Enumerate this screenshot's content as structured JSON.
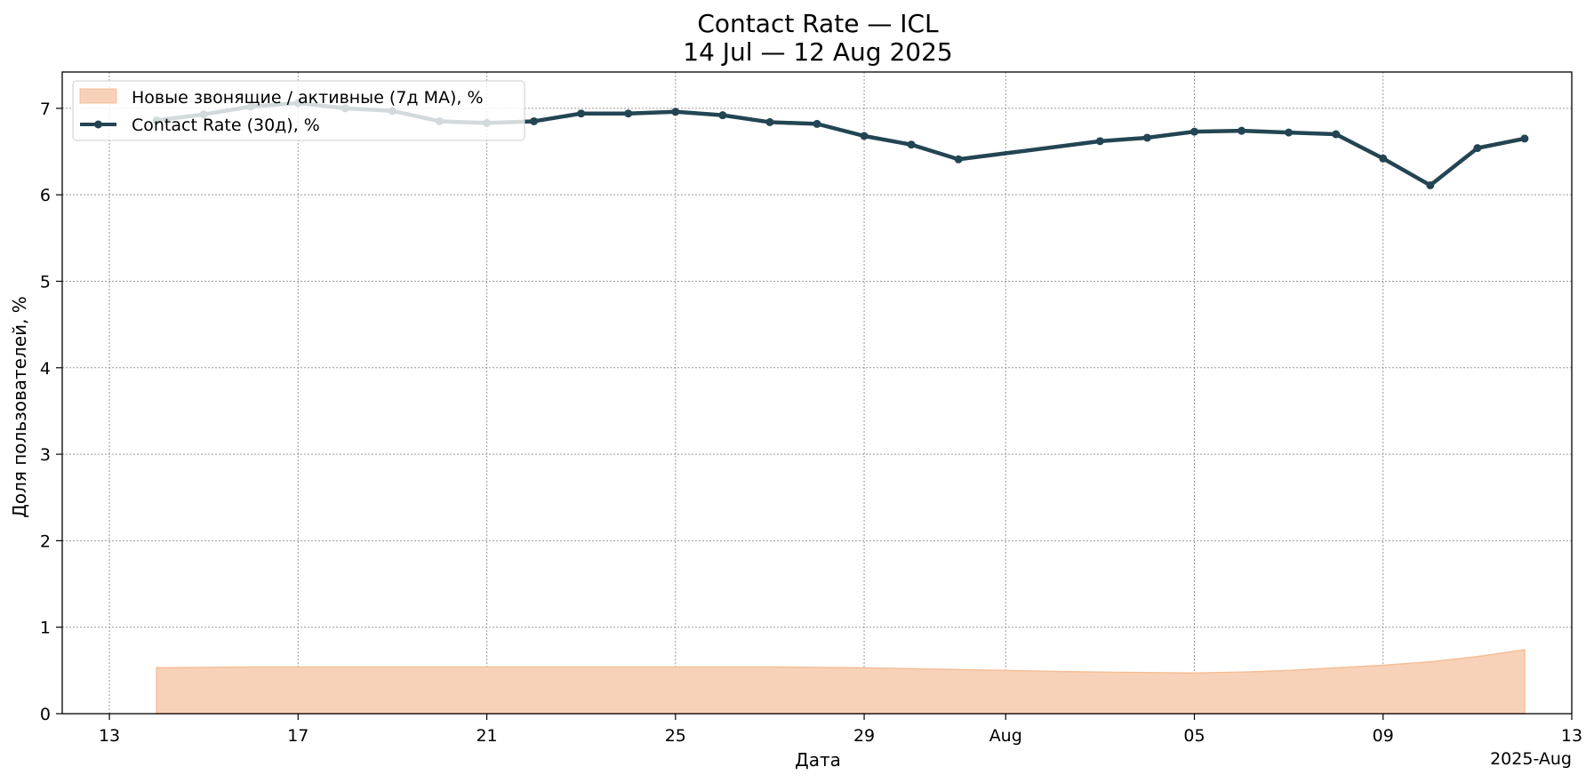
{
  "chart_data": {
    "type": "line",
    "title_line1": "Contact Rate — ICL",
    "title_line2": "14 Jul — 12 Aug 2025",
    "xlabel": "Дата",
    "ylabel": "Доля пользователей, %",
    "x_offset_label": "2025-Aug",
    "xlim": [
      "2025-07-12",
      "2025-08-13"
    ],
    "ylim": [
      0,
      7.42
    ],
    "yticks": [
      0,
      1,
      2,
      3,
      4,
      5,
      6,
      7
    ],
    "xticks": [
      {
        "date": "2025-07-13",
        "label": "13"
      },
      {
        "date": "2025-07-17",
        "label": "17"
      },
      {
        "date": "2025-07-21",
        "label": "21"
      },
      {
        "date": "2025-07-25",
        "label": "25"
      },
      {
        "date": "2025-07-29",
        "label": "29"
      },
      {
        "date": "2025-08-01",
        "label": "Aug"
      },
      {
        "date": "2025-08-05",
        "label": "05"
      },
      {
        "date": "2025-08-09",
        "label": "09"
      },
      {
        "date": "2025-08-13",
        "label": "13"
      }
    ],
    "grid": true,
    "legend_position": "upper-left",
    "series": [
      {
        "name": "Новые звонящие / активные (7д MA), %",
        "kind": "area",
        "color": "#f8d2b8",
        "edge_color": "#f3bf99",
        "x": [
          "2025-07-14",
          "2025-07-15",
          "2025-07-16",
          "2025-07-17",
          "2025-07-18",
          "2025-07-19",
          "2025-07-20",
          "2025-07-21",
          "2025-07-22",
          "2025-07-23",
          "2025-07-24",
          "2025-07-25",
          "2025-07-26",
          "2025-07-27",
          "2025-07-28",
          "2025-07-29",
          "2025-07-30",
          "2025-07-31",
          "2025-08-01",
          "2025-08-02",
          "2025-08-03",
          "2025-08-04",
          "2025-08-05",
          "2025-08-06",
          "2025-08-07",
          "2025-08-08",
          "2025-08-09",
          "2025-08-10",
          "2025-08-11",
          "2025-08-12"
        ],
        "values": [
          0.53,
          0.535,
          0.54,
          0.54,
          0.54,
          0.54,
          0.54,
          0.54,
          0.54,
          0.54,
          0.54,
          0.54,
          0.54,
          0.54,
          0.535,
          0.53,
          0.52,
          0.51,
          0.5,
          0.49,
          0.48,
          0.475,
          0.47,
          0.48,
          0.5,
          0.53,
          0.56,
          0.6,
          0.66,
          0.74
        ]
      },
      {
        "name": "Contact Rate (30д), %",
        "kind": "line",
        "color": "#234553",
        "x": [
          "2025-07-14",
          "2025-07-15",
          "2025-07-16",
          "2025-07-17",
          "2025-07-18",
          "2025-07-19",
          "2025-07-20",
          "2025-07-21",
          "2025-07-22",
          "2025-07-23",
          "2025-07-24",
          "2025-07-25",
          "2025-07-26",
          "2025-07-27",
          "2025-07-28",
          "2025-07-29",
          "2025-07-30",
          "2025-07-31",
          "2025-08-03",
          "2025-08-04",
          "2025-08-05",
          "2025-08-06",
          "2025-08-07",
          "2025-08-08",
          "2025-08-09",
          "2025-08-10",
          "2025-08-11",
          "2025-08-12"
        ],
        "values": [
          6.86,
          6.93,
          7.02,
          7.06,
          7.0,
          6.97,
          6.85,
          6.83,
          6.85,
          6.94,
          6.94,
          6.96,
          6.92,
          6.84,
          6.82,
          6.68,
          6.58,
          6.41,
          6.62,
          6.66,
          6.73,
          6.74,
          6.72,
          6.7,
          6.42,
          6.11,
          6.54,
          6.65
        ]
      }
    ]
  }
}
